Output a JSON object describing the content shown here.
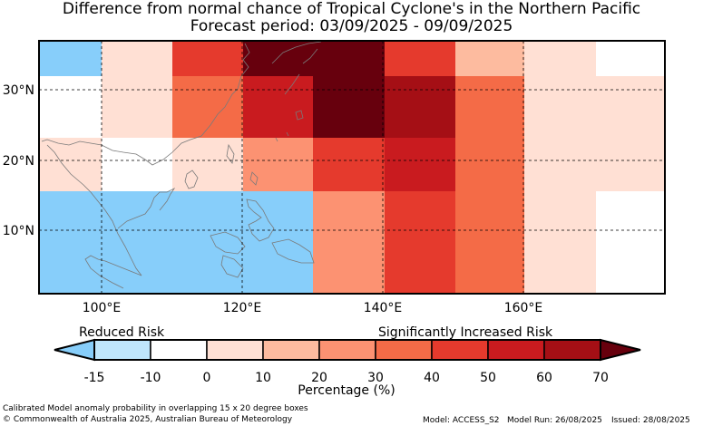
{
  "title_line1": "Difference from normal chance of Tropical Cyclone's in the Northern Pacific",
  "title_line2": "Forecast period: 03/09/2025 - 09/09/2025",
  "map": {
    "lat_labels": [
      "30°N",
      "20°N",
      "10°N"
    ],
    "lon_labels": [
      "100°E",
      "120°E",
      "140°E",
      "160°E"
    ],
    "grid_cells_percent": [
      {
        "lon": "91-101E",
        "rows": {
          "30-38N": -15,
          "20-30N": -10,
          "10-20N": 0,
          "0-10N": -15
        }
      },
      {
        "lon": "101-111E",
        "rows": {
          "30-38N": 0,
          "20-30N": 0,
          "10-20N": -10,
          "0-10N": -15
        }
      },
      {
        "lon": "111-121E",
        "rows": {
          "30-38N": 40,
          "20-30N": 30,
          "10-20N": 0,
          "0-10N": -15
        }
      },
      {
        "lon": "121-131E",
        "rows": {
          "30-38N": 70,
          "20-30N": 50,
          "10-20N": 20,
          "0-10N": -15
        }
      },
      {
        "lon": "131-141E",
        "rows": {
          "30-38N": 70,
          "20-30N": 70,
          "10-20N": 40,
          "0-10N": 20
        }
      },
      {
        "lon": "141-151E",
        "rows": {
          "30-38N": 40,
          "20-30N": 60,
          "10-20N": 50,
          "0-10N": 40
        }
      },
      {
        "lon": "151-161E",
        "rows": {
          "30-38N": 10,
          "20-30N": 30,
          "10-20N": 30,
          "0-10N": 30
        }
      },
      {
        "lon": "161-171E",
        "rows": {
          "30-38N": 0,
          "20-30N": 0,
          "10-20N": 0,
          "0-10N": 0
        }
      },
      {
        "lon": "171-181E",
        "rows": {
          "30-38N": -10,
          "20-30N": 0,
          "10-20N": 0,
          "0-10N": -10
        }
      }
    ]
  },
  "legend": {
    "reduced_label": "Reduced Risk",
    "increased_label": "Significantly Increased Risk",
    "axis_title": "Percentage (%)",
    "ticks": [
      "-15",
      "-10",
      "0",
      "10",
      "20",
      "30",
      "40",
      "50",
      "60",
      "70"
    ],
    "colors": [
      "#87cefa",
      "#bfe6fb",
      "#ffffff",
      "#ffe0d4",
      "#fdbb9f",
      "#fc9272",
      "#f46b47",
      "#e53a2d",
      "#c91b1f",
      "#a50f15",
      "#67000d"
    ]
  },
  "footer": {
    "note": "Calibrated Model anomaly probability in overlapping 15 x 20 degree boxes",
    "copyright": "© Commonwealth of Australia 2025, Australian Bureau of Meteorology",
    "model": "Model: ACCESS_S2",
    "model_run": "Model Run: 26/08/2025",
    "issued": "Issued: 28/08/2025"
  }
}
